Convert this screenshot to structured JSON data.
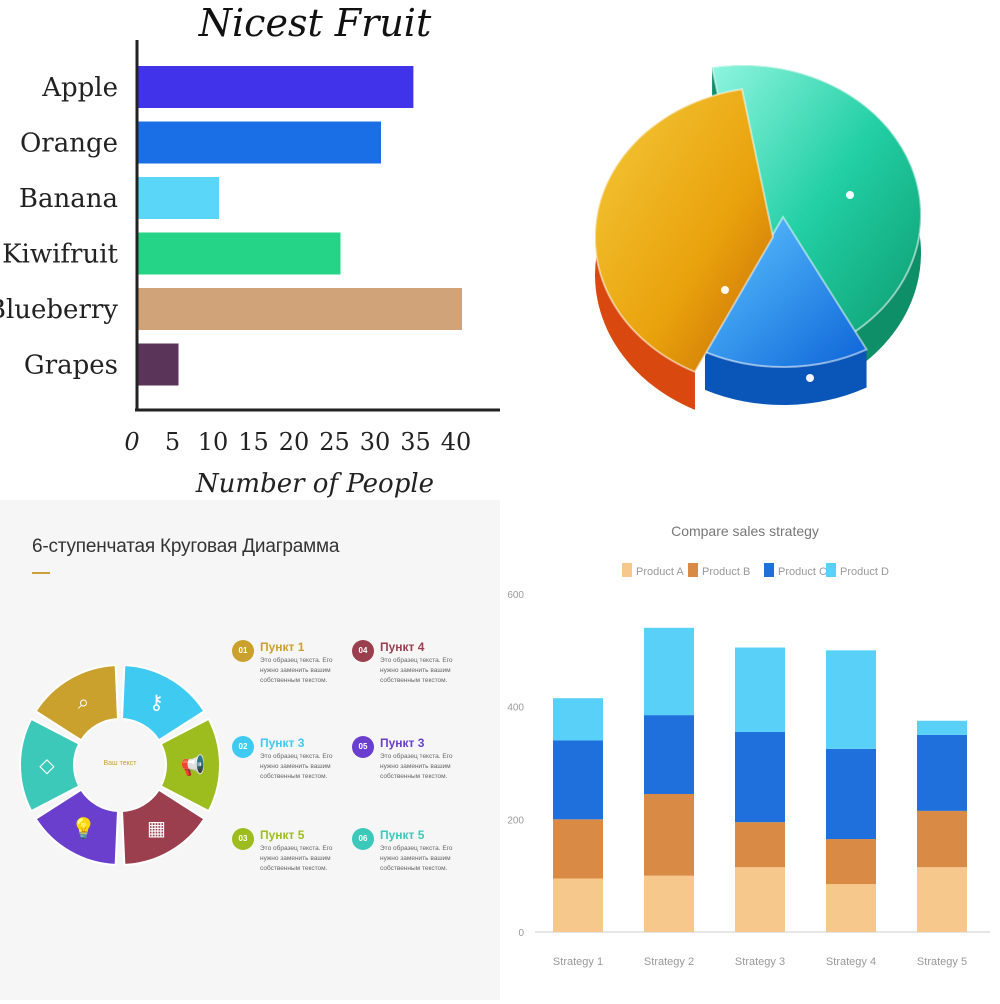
{
  "chart_data": [
    {
      "type": "bar",
      "orientation": "horizontal",
      "title": "Nicest Fruit",
      "xlabel": "Number of People",
      "ylabel": "",
      "categories": [
        "Apple",
        "Orange",
        "Banana",
        "Kiwifruit",
        "Blueberry",
        "Grapes"
      ],
      "values": [
        34,
        30,
        10,
        25,
        40,
        5
      ],
      "colors": [
        "#4133ea",
        "#1a6fe6",
        "#5ad7f8",
        "#25d486",
        "#d1a378",
        "#5a3559"
      ],
      "xlim": [
        0,
        40
      ],
      "xticks": [
        "0",
        "5",
        "10",
        "15",
        "20",
        "25",
        "30",
        "35",
        "40"
      ],
      "grid": false
    },
    {
      "type": "pie",
      "style": "3d",
      "values": [
        45,
        15,
        40
      ],
      "colors": [
        "#27d0ae",
        "#1f8ff0",
        "#f2b416"
      ]
    },
    {
      "type": "pie",
      "style": "ring",
      "title": "6-ступенчатая Круговая Диаграмма",
      "center_label": "Ваш текст",
      "segments": [
        {
          "color": "#c9a12c",
          "icon": "magnifier-icon"
        },
        {
          "color": "#3fcaf2",
          "icon": "key-icon"
        },
        {
          "color": "#9dbd1f",
          "icon": "megaphone-icon"
        },
        {
          "color": "#9b3f4e",
          "icon": "shop-icon"
        },
        {
          "color": "#6a3fce",
          "icon": "bulb-icon"
        },
        {
          "color": "#3cc9b9",
          "icon": "diamond-icon"
        }
      ],
      "items": [
        {
          "num": "01",
          "title": "Пункт 1",
          "text": "Это образец текста. Его нужно заменить вашим собственным текстом.",
          "color": "#c9a12c"
        },
        {
          "num": "02",
          "title": "Пункт 3",
          "text": "Это образец текста. Его нужно заменить вашим собственным текстом.",
          "color": "#3fcaf2"
        },
        {
          "num": "03",
          "title": "Пункт 5",
          "text": "Это образец текста. Его нужно заменить вашим собственным текстом.",
          "color": "#9dbd1f"
        },
        {
          "num": "04",
          "title": "Пункт 4",
          "text": "Это образец текста. Его нужно заменить вашим собственным текстом.",
          "color": "#9b3f4e"
        },
        {
          "num": "05",
          "title": "Пункт 3",
          "text": "Это образец текста. Его нужно заменить вашим собственным текстом.",
          "color": "#6a3fce"
        },
        {
          "num": "06",
          "title": "Пункт 5",
          "text": "Это образец текста. Его нужно заменить вашим собственным текстом.",
          "color": "#3cc9b9"
        }
      ]
    },
    {
      "type": "bar",
      "stacked": true,
      "title": "Compare sales strategy",
      "categories": [
        "Strategy 1",
        "Strategy 2",
        "Strategy 3",
        "Strategy 4",
        "Strategy 5"
      ],
      "series": [
        {
          "name": "Product A",
          "values": [
            95,
            100,
            115,
            85,
            115
          ],
          "color": "#f6c88c"
        },
        {
          "name": "Product B",
          "values": [
            105,
            145,
            80,
            80,
            100
          ],
          "color": "#d98a45"
        },
        {
          "name": "Product C",
          "values": [
            140,
            140,
            160,
            160,
            135
          ],
          "color": "#1f6fdd"
        },
        {
          "name": "Product D",
          "values": [
            75,
            155,
            150,
            175,
            25
          ],
          "color": "#58d0f7"
        }
      ],
      "ylim": [
        0,
        600
      ],
      "yticks": [
        "0",
        "200",
        "400",
        "600"
      ],
      "legend": "top",
      "grid": false
    }
  ]
}
